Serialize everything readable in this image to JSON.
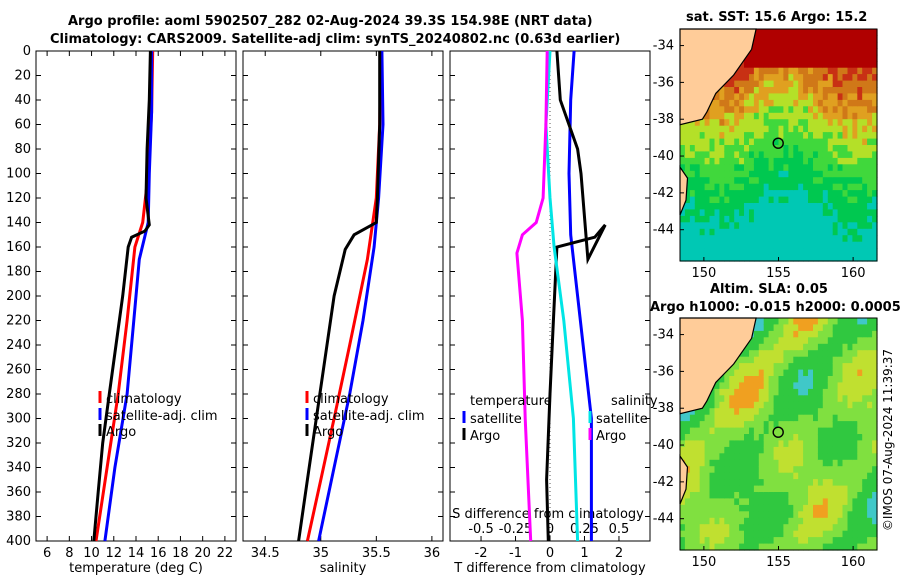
{
  "titles": {
    "line1": "Argo profile: aoml 5902507_282 02-Aug-2024 39.3S 154.98E (NRT data)",
    "line2": "Climatology: CARS2009. Satellite-adj clim: synTS_20240802.nc (0.63d earlier)",
    "sst": "sat. SST: 15.6 Argo: 15.2",
    "sla1": "Altim. SLA: 0.05",
    "sla2": "Argo h1000: -0.015 h2000: 0.0005"
  },
  "watermark": "©IMOS 07-Aug-2024 11:39:37",
  "colors": {
    "climatology": "#ff0000",
    "satellite": "#0000ff",
    "argo": "#000000",
    "sal_satellite": "#00e5e5",
    "sal_argo": "#ff00ff",
    "land": "#ffcc99"
  },
  "chart_data": [
    {
      "type": "line",
      "id": "temperature",
      "xlabel": "temperature (deg C)",
      "ylabel": "",
      "xlim": [
        5,
        23
      ],
      "ylim": [
        400,
        0
      ],
      "xticks": [
        "6",
        "8",
        "10",
        "12",
        "14",
        "16",
        "18",
        "20",
        "22"
      ],
      "yticks": [
        "0",
        "20",
        "40",
        "60",
        "80",
        "100",
        "120",
        "140",
        "160",
        "180",
        "200",
        "220",
        "240",
        "260",
        "280",
        "300",
        "320",
        "340",
        "360",
        "380",
        "400"
      ],
      "legend": [
        "climatology",
        "satellite-adj. clim",
        "Argo"
      ],
      "series": [
        {
          "name": "climatology",
          "color": "#ff0000",
          "points": [
            [
              15.5,
              0
            ],
            [
              15.4,
              50
            ],
            [
              15.1,
              100
            ],
            [
              14.6,
              140
            ],
            [
              13.9,
              160
            ],
            [
              13.2,
              220
            ],
            [
              12.4,
              280
            ],
            [
              11.4,
              340
            ],
            [
              10.4,
              400
            ]
          ]
        },
        {
          "name": "satellite-adj. clim",
          "color": "#0000ff",
          "points": [
            [
              15.4,
              0
            ],
            [
              15.4,
              50
            ],
            [
              15.2,
              100
            ],
            [
              15.1,
              140
            ],
            [
              14.3,
              170
            ],
            [
              13.8,
              220
            ],
            [
              13.2,
              280
            ],
            [
              12.1,
              340
            ],
            [
              11.2,
              400
            ]
          ]
        },
        {
          "name": "Argo",
          "color": "#000000",
          "points": [
            [
              15.3,
              0
            ],
            [
              15.2,
              40
            ],
            [
              15.0,
              80
            ],
            [
              14.9,
              120
            ],
            [
              15.2,
              142
            ],
            [
              14.8,
              147
            ],
            [
              13.6,
              152
            ],
            [
              13.3,
              160
            ],
            [
              12.8,
              200
            ],
            [
              12.2,
              240
            ],
            [
              11.6,
              280
            ],
            [
              11.0,
              320
            ],
            [
              10.6,
              360
            ],
            [
              10.2,
              400
            ]
          ]
        }
      ]
    },
    {
      "type": "line",
      "id": "salinity",
      "xlabel": "salinity",
      "ylabel": "",
      "xlim": [
        34.3,
        36.1
      ],
      "ylim": [
        400,
        0
      ],
      "xticks": [
        "34.5",
        "35",
        "35.5",
        "36"
      ],
      "legend": [
        "climatology",
        "satellite-adj. clim",
        "Argo"
      ],
      "series": [
        {
          "name": "climatology",
          "color": "#ff0000",
          "points": [
            [
              35.54,
              0
            ],
            [
              35.53,
              60
            ],
            [
              35.5,
              120
            ],
            [
              35.42,
              170
            ],
            [
              35.26,
              240
            ],
            [
              35.12,
              300
            ],
            [
              35.0,
              350
            ],
            [
              34.88,
              400
            ]
          ]
        },
        {
          "name": "satellite-adj. clim",
          "color": "#0000ff",
          "points": [
            [
              35.55,
              0
            ],
            [
              35.56,
              60
            ],
            [
              35.52,
              120
            ],
            [
              35.48,
              160
            ],
            [
              35.38,
              220
            ],
            [
              35.26,
              280
            ],
            [
              35.12,
              340
            ],
            [
              34.98,
              400
            ]
          ]
        },
        {
          "name": "Argo",
          "color": "#000000",
          "points": [
            [
              35.53,
              0
            ],
            [
              35.53,
              60
            ],
            [
              35.51,
              120
            ],
            [
              35.5,
              140
            ],
            [
              35.3,
              150
            ],
            [
              35.22,
              162
            ],
            [
              35.12,
              200
            ],
            [
              35.04,
              250
            ],
            [
              34.96,
              300
            ],
            [
              34.88,
              350
            ],
            [
              34.8,
              400
            ]
          ]
        }
      ]
    },
    {
      "type": "line",
      "id": "differences",
      "xlabel": "T difference from climatology",
      "ylabel": "",
      "xlim": [
        -2.9,
        2.9
      ],
      "ylim": [
        400,
        0
      ],
      "xticks": [
        "-2",
        "-1",
        "0",
        "1",
        "2"
      ],
      "s_axis_label": "S difference from climatology",
      "s_xticks": [
        "-0.5",
        "-0.25",
        "0",
        "0.25",
        "0.5"
      ],
      "legend": {
        "temperature_title": "temperature",
        "temperature": [
          "satellite",
          "Argo"
        ],
        "salinity_title": "salinity",
        "salinity": [
          "satellite",
          "Argo"
        ]
      },
      "series": [
        {
          "name": "T satellite",
          "color": "#0000ff",
          "points": [
            [
              0.7,
              0
            ],
            [
              0.6,
              40
            ],
            [
              0.55,
              100
            ],
            [
              0.6,
              150
            ],
            [
              0.8,
              200
            ],
            [
              1.0,
              250
            ],
            [
              1.2,
              300
            ],
            [
              1.2,
              400
            ]
          ]
        },
        {
          "name": "T Argo",
          "color": "#000000",
          "points": [
            [
              0.2,
              0
            ],
            [
              0.3,
              40
            ],
            [
              0.8,
              80
            ],
            [
              0.9,
              100
            ],
            [
              1.1,
              170
            ],
            [
              1.6,
              142
            ],
            [
              1.3,
              152
            ],
            [
              0.2,
              160
            ],
            [
              0.1,
              220
            ],
            [
              0.0,
              280
            ],
            [
              -0.1,
              350
            ],
            [
              -0.05,
              400
            ]
          ]
        },
        {
          "name": "S satellite",
          "color": "#00e5e5",
          "points": [
            [
              0.0,
              0
            ],
            [
              -0.03,
              60
            ],
            [
              0.0,
              120
            ],
            [
              0.03,
              160
            ],
            [
              0.1,
              220
            ],
            [
              0.17,
              300
            ],
            [
              0.2,
              400
            ]
          ]
        },
        {
          "name": "S Argo",
          "color": "#ff00ff",
          "points": [
            [
              -0.02,
              0
            ],
            [
              -0.03,
              60
            ],
            [
              -0.05,
              120
            ],
            [
              -0.1,
              140
            ],
            [
              -0.2,
              150
            ],
            [
              -0.24,
              165
            ],
            [
              -0.2,
              220
            ],
            [
              -0.18,
              300
            ],
            [
              -0.14,
              400
            ]
          ]
        }
      ]
    },
    {
      "type": "heatmap",
      "id": "sst_map",
      "title": "sat. SST: 15.6 Argo: 15.2",
      "xticks": [
        "150",
        "155",
        "160"
      ],
      "yticks": [
        "-34",
        "-36",
        "-38",
        "-40",
        "-42",
        "-44"
      ],
      "marker": {
        "lon": 154.98,
        "lat": -39.3
      }
    },
    {
      "type": "heatmap",
      "id": "sla_map",
      "title": "Altim. SLA: 0.05",
      "subtitle": "Argo h1000: -0.015 h2000: 0.0005",
      "xticks": [
        "150",
        "155",
        "160"
      ],
      "yticks": [
        "-34",
        "-36",
        "-38",
        "-40",
        "-42",
        "-44"
      ],
      "marker": {
        "lon": 154.98,
        "lat": -39.3
      }
    }
  ]
}
